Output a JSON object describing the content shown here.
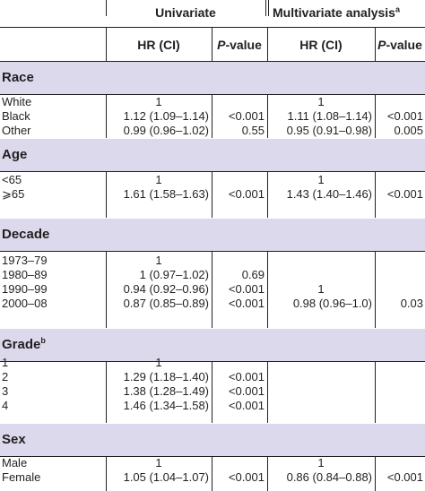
{
  "header": {
    "group_univariate": "Univariate",
    "group_multivariate": "Multivariate analysis",
    "group_multivariate_sup": "a",
    "col_hr": "HR (CI)",
    "col_p_italic": "P",
    "col_p_rest": "-value"
  },
  "sections": [
    {
      "title": "Race",
      "title_sup": "",
      "rows": [
        {
          "label": "White",
          "u_hr": "1",
          "u_p": "",
          "m_hr": "1",
          "m_p": ""
        },
        {
          "label": "Black",
          "u_hr": "1.12 (1.09–1.14)",
          "u_p": "<0.001",
          "m_hr": "1.11 (1.08–1.14)",
          "m_p": "<0.001"
        },
        {
          "label": "Other",
          "u_hr": "0.99 (0.96–1.02)",
          "u_p": "0.55",
          "m_hr": "0.95 (0.91–0.98)",
          "m_p": "0.005"
        }
      ]
    },
    {
      "title": "Age",
      "title_sup": "",
      "rows": [
        {
          "label": "<65",
          "u_hr": "1",
          "u_p": "",
          "m_hr": "1",
          "m_p": ""
        },
        {
          "label": "⩾65",
          "u_hr": "1.61 (1.58–1.63)",
          "u_p": "<0.001",
          "m_hr": "1.43 (1.40–1.46)",
          "m_p": "<0.001"
        }
      ]
    },
    {
      "title": "Decade",
      "title_sup": "",
      "rows": [
        {
          "label": "1973–79",
          "u_hr": "1",
          "u_p": "",
          "m_hr": "",
          "m_p": ""
        },
        {
          "label": "1980–89",
          "u_hr": "1 (0.97–1.02)",
          "u_p": "0.69",
          "m_hr": "",
          "m_p": ""
        },
        {
          "label": "1990–99",
          "u_hr": "0.94 (0.92–0.96)",
          "u_p": "<0.001",
          "m_hr": "1",
          "m_p": ""
        },
        {
          "label": "2000–08",
          "u_hr": "0.87 (0.85–0.89)",
          "u_p": "<0.001",
          "m_hr": "0.98 (0.96–1.0)",
          "m_p": "0.03"
        }
      ]
    },
    {
      "title": "Grade",
      "title_sup": "b",
      "rows": [
        {
          "label": "1",
          "u_hr": "1",
          "u_p": "",
          "m_hr": "",
          "m_p": ""
        },
        {
          "label": "2",
          "u_hr": "1.29 (1.18–1.40)",
          "u_p": "<0.001",
          "m_hr": "",
          "m_p": ""
        },
        {
          "label": "3",
          "u_hr": "1.38 (1.28–1.49)",
          "u_p": "<0.001",
          "m_hr": "",
          "m_p": ""
        },
        {
          "label": "4",
          "u_hr": "1.46 (1.34–1.58)",
          "u_p": "<0.001",
          "m_hr": "",
          "m_p": ""
        }
      ]
    },
    {
      "title": "Sex",
      "title_sup": "",
      "rows": [
        {
          "label": "Male",
          "u_hr": "1",
          "u_p": "",
          "m_hr": "1",
          "m_p": ""
        },
        {
          "label": "Female",
          "u_hr": "1.05 (1.04–1.07)",
          "u_p": "<0.001",
          "m_hr": "0.86 (0.84–0.88)",
          "m_p": "<0.001"
        }
      ]
    }
  ]
}
